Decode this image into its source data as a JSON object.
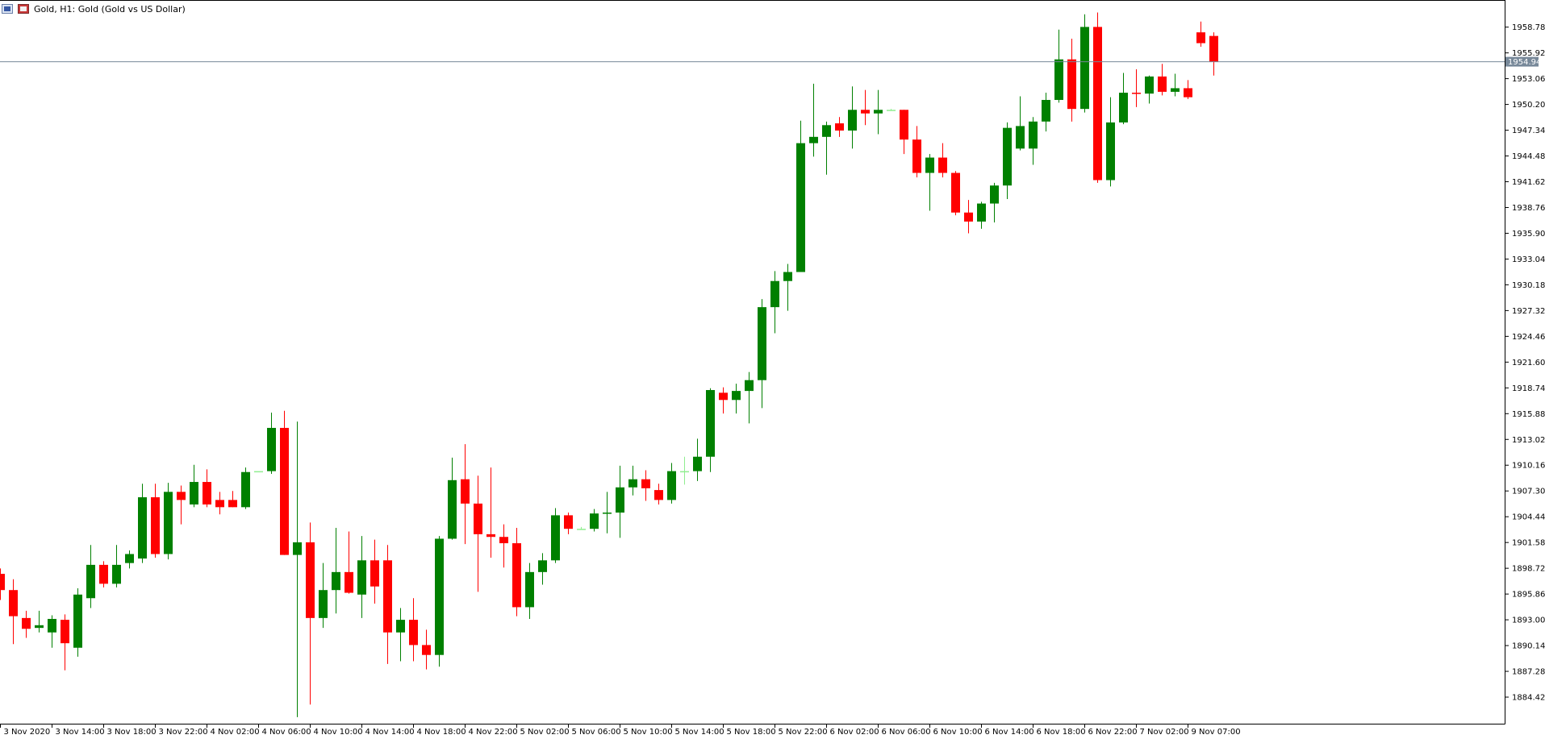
{
  "window": {
    "title": "Gold, H1:  Gold (Gold vs US Dollar)",
    "icons": [
      "chart-window-icon",
      "symbol-window-icon"
    ]
  },
  "colors": {
    "bull": "#008000",
    "bear": "#ff0000",
    "doji": "#90ee90",
    "axis": "#000000",
    "current_price_line": "#778899",
    "current_price_tag": "#778899",
    "background": "#ffffff"
  },
  "chart_data": {
    "type": "candlestick",
    "symbol": "Gold",
    "timeframe": "H1",
    "current_price": 1954.94,
    "current_price_label": "1954.94",
    "ylim": [
      1881.56,
      1961.7
    ],
    "ytick_labels": [
      "1958.78",
      "1955.92",
      "1953.06",
      "1950.20",
      "1947.34",
      "1944.48",
      "1941.62",
      "1938.76",
      "1935.90",
      "1933.04",
      "1930.18",
      "1927.32",
      "1924.46",
      "1921.60",
      "1918.74",
      "1915.88",
      "1913.02",
      "1910.16",
      "1907.30",
      "1904.44",
      "1901.58",
      "1898.72",
      "1895.86",
      "1893.00",
      "1890.14",
      "1887.28",
      "1884.42"
    ],
    "xtick_labels": [
      "3 Nov 2020",
      "3 Nov 14:00",
      "3 Nov 18:00",
      "3 Nov 22:00",
      "4 Nov 02:00",
      "4 Nov 06:00",
      "4 Nov 10:00",
      "4 Nov 14:00",
      "4 Nov 18:00",
      "4 Nov 22:00",
      "5 Nov 02:00",
      "5 Nov 06:00",
      "5 Nov 10:00",
      "5 Nov 14:00",
      "5 Nov 18:00",
      "5 Nov 22:00",
      "6 Nov 02:00",
      "6 Nov 06:00",
      "6 Nov 10:00",
      "6 Nov 14:00",
      "6 Nov 18:00",
      "6 Nov 22:00",
      "7 Nov 02:00",
      "9 Nov 07:00"
    ],
    "candles": [
      {
        "o": 1898.1,
        "h": 1898.7,
        "l": 1895.2,
        "c": 1896.3
      },
      {
        "o": 1896.3,
        "h": 1897.5,
        "l": 1890.3,
        "c": 1893.4
      },
      {
        "o": 1893.2,
        "h": 1894.0,
        "l": 1891.0,
        "c": 1892.0
      },
      {
        "o": 1892.1,
        "h": 1894.0,
        "l": 1891.6,
        "c": 1892.4
      },
      {
        "o": 1891.6,
        "h": 1893.5,
        "l": 1889.9,
        "c": 1893.1
      },
      {
        "o": 1893.0,
        "h": 1893.6,
        "l": 1887.4,
        "c": 1890.4
      },
      {
        "o": 1889.9,
        "h": 1896.5,
        "l": 1888.9,
        "c": 1895.8
      },
      {
        "o": 1895.4,
        "h": 1901.3,
        "l": 1894.3,
        "c": 1899.1
      },
      {
        "o": 1899.1,
        "h": 1899.5,
        "l": 1896.6,
        "c": 1897.0
      },
      {
        "o": 1897.0,
        "h": 1901.3,
        "l": 1896.6,
        "c": 1899.1
      },
      {
        "o": 1899.3,
        "h": 1900.7,
        "l": 1898.7,
        "c": 1900.3
      },
      {
        "o": 1899.8,
        "h": 1908.1,
        "l": 1899.3,
        "c": 1906.6
      },
      {
        "o": 1906.6,
        "h": 1908.1,
        "l": 1899.9,
        "c": 1900.3
      },
      {
        "o": 1900.3,
        "h": 1908.2,
        "l": 1899.7,
        "c": 1907.2
      },
      {
        "o": 1907.2,
        "h": 1907.9,
        "l": 1903.6,
        "c": 1906.3
      },
      {
        "o": 1905.8,
        "h": 1910.2,
        "l": 1905.5,
        "c": 1908.3
      },
      {
        "o": 1908.3,
        "h": 1909.7,
        "l": 1905.5,
        "c": 1905.8
      },
      {
        "o": 1906.3,
        "h": 1907.2,
        "l": 1904.7,
        "c": 1905.5
      },
      {
        "o": 1906.3,
        "h": 1907.3,
        "l": 1905.5,
        "c": 1905.5
      },
      {
        "o": 1905.5,
        "h": 1909.9,
        "l": 1905.3,
        "c": 1909.4
      },
      {
        "o": 1909.5,
        "h": 1909.5,
        "l": 1909.5,
        "c": 1909.5
      },
      {
        "o": 1909.5,
        "h": 1916.0,
        "l": 1909.2,
        "c": 1914.3
      },
      {
        "o": 1914.3,
        "h": 1916.2,
        "l": 1900.2,
        "c": 1900.2
      },
      {
        "o": 1900.2,
        "h": 1915.0,
        "l": 1882.2,
        "c": 1901.6
      },
      {
        "o": 1901.6,
        "h": 1903.8,
        "l": 1883.6,
        "c": 1893.2
      },
      {
        "o": 1893.2,
        "h": 1899.3,
        "l": 1892.1,
        "c": 1896.3
      },
      {
        "o": 1896.3,
        "h": 1903.2,
        "l": 1893.7,
        "c": 1898.3
      },
      {
        "o": 1898.3,
        "h": 1902.8,
        "l": 1895.9,
        "c": 1896.0
      },
      {
        "o": 1895.8,
        "h": 1902.3,
        "l": 1893.2,
        "c": 1899.6
      },
      {
        "o": 1899.6,
        "h": 1901.9,
        "l": 1894.8,
        "c": 1896.7
      },
      {
        "o": 1899.6,
        "h": 1901.3,
        "l": 1888.1,
        "c": 1891.6
      },
      {
        "o": 1891.6,
        "h": 1894.3,
        "l": 1888.4,
        "c": 1893.0
      },
      {
        "o": 1893.0,
        "h": 1895.4,
        "l": 1888.4,
        "c": 1890.2
      },
      {
        "o": 1890.2,
        "h": 1891.9,
        "l": 1887.5,
        "c": 1889.1
      },
      {
        "o": 1889.1,
        "h": 1902.3,
        "l": 1887.8,
        "c": 1902.0
      },
      {
        "o": 1902.0,
        "h": 1911.0,
        "l": 1901.9,
        "c": 1908.5
      },
      {
        "o": 1908.6,
        "h": 1912.5,
        "l": 1901.4,
        "c": 1905.9
      },
      {
        "o": 1905.9,
        "h": 1909.0,
        "l": 1896.1,
        "c": 1902.5
      },
      {
        "o": 1902.5,
        "h": 1909.9,
        "l": 1899.9,
        "c": 1902.2
      },
      {
        "o": 1902.2,
        "h": 1903.6,
        "l": 1898.8,
        "c": 1901.5
      },
      {
        "o": 1901.5,
        "h": 1903.2,
        "l": 1893.4,
        "c": 1894.4
      },
      {
        "o": 1894.4,
        "h": 1899.3,
        "l": 1893.1,
        "c": 1898.3
      },
      {
        "o": 1898.3,
        "h": 1900.4,
        "l": 1896.9,
        "c": 1899.6
      },
      {
        "o": 1899.6,
        "h": 1905.4,
        "l": 1899.3,
        "c": 1904.6
      },
      {
        "o": 1904.6,
        "h": 1904.9,
        "l": 1902.5,
        "c": 1903.1
      },
      {
        "o": 1903.1,
        "h": 1903.3,
        "l": 1903.0,
        "c": 1903.1
      },
      {
        "o": 1903.1,
        "h": 1905.3,
        "l": 1902.8,
        "c": 1904.8
      },
      {
        "o": 1904.8,
        "h": 1907.2,
        "l": 1902.6,
        "c": 1904.9
      },
      {
        "o": 1904.9,
        "h": 1910.1,
        "l": 1902.1,
        "c": 1907.7
      },
      {
        "o": 1907.7,
        "h": 1910.1,
        "l": 1906.8,
        "c": 1908.6
      },
      {
        "o": 1908.6,
        "h": 1909.6,
        "l": 1906.2,
        "c": 1907.6
      },
      {
        "o": 1907.4,
        "h": 1908.1,
        "l": 1905.8,
        "c": 1906.3
      },
      {
        "o": 1906.3,
        "h": 1910.4,
        "l": 1905.9,
        "c": 1909.5
      },
      {
        "o": 1909.5,
        "h": 1911.1,
        "l": 1908.0,
        "c": 1909.5
      },
      {
        "o": 1909.5,
        "h": 1913.1,
        "l": 1908.4,
        "c": 1911.1
      },
      {
        "o": 1911.1,
        "h": 1918.7,
        "l": 1909.4,
        "c": 1918.5
      },
      {
        "o": 1918.2,
        "h": 1918.8,
        "l": 1915.9,
        "c": 1917.4
      },
      {
        "o": 1917.4,
        "h": 1919.2,
        "l": 1915.9,
        "c": 1918.4
      },
      {
        "o": 1918.4,
        "h": 1920.5,
        "l": 1914.8,
        "c": 1919.6
      },
      {
        "o": 1919.6,
        "h": 1928.6,
        "l": 1916.5,
        "c": 1927.7
      },
      {
        "o": 1927.7,
        "h": 1931.7,
        "l": 1924.8,
        "c": 1930.6
      },
      {
        "o": 1930.6,
        "h": 1932.5,
        "l": 1927.3,
        "c": 1931.6
      },
      {
        "o": 1931.6,
        "h": 1948.4,
        "l": 1931.6,
        "c": 1945.9
      },
      {
        "o": 1945.9,
        "h": 1952.5,
        "l": 1944.4,
        "c": 1946.6
      },
      {
        "o": 1946.6,
        "h": 1948.3,
        "l": 1942.4,
        "c": 1947.9
      },
      {
        "o": 1948.1,
        "h": 1948.8,
        "l": 1946.6,
        "c": 1947.3
      },
      {
        "o": 1947.3,
        "h": 1952.2,
        "l": 1945.3,
        "c": 1949.6
      },
      {
        "o": 1949.6,
        "h": 1951.8,
        "l": 1947.9,
        "c": 1949.2
      },
      {
        "o": 1949.2,
        "h": 1951.8,
        "l": 1946.9,
        "c": 1949.6
      },
      {
        "o": 1949.6,
        "h": 1949.7,
        "l": 1949.5,
        "c": 1949.6
      },
      {
        "o": 1949.6,
        "h": 1949.6,
        "l": 1944.7,
        "c": 1946.3
      },
      {
        "o": 1946.3,
        "h": 1947.8,
        "l": 1942.1,
        "c": 1942.6
      },
      {
        "o": 1942.6,
        "h": 1944.7,
        "l": 1938.4,
        "c": 1944.3
      },
      {
        "o": 1944.3,
        "h": 1945.9,
        "l": 1942.1,
        "c": 1942.6
      },
      {
        "o": 1942.6,
        "h": 1942.8,
        "l": 1937.9,
        "c": 1938.2
      },
      {
        "o": 1938.2,
        "h": 1939.6,
        "l": 1935.9,
        "c": 1937.2
      },
      {
        "o": 1937.2,
        "h": 1939.4,
        "l": 1936.4,
        "c": 1939.2
      },
      {
        "o": 1939.2,
        "h": 1941.5,
        "l": 1937.1,
        "c": 1941.2
      },
      {
        "o": 1941.2,
        "h": 1948.2,
        "l": 1939.7,
        "c": 1947.6
      },
      {
        "o": 1945.3,
        "h": 1951.1,
        "l": 1945.1,
        "c": 1947.8
      },
      {
        "o": 1945.3,
        "h": 1948.8,
        "l": 1943.5,
        "c": 1948.3
      },
      {
        "o": 1948.3,
        "h": 1951.5,
        "l": 1947.2,
        "c": 1950.7
      },
      {
        "o": 1950.7,
        "h": 1958.5,
        "l": 1950.4,
        "c": 1955.2
      },
      {
        "o": 1955.2,
        "h": 1957.5,
        "l": 1948.3,
        "c": 1949.7
      },
      {
        "o": 1949.7,
        "h": 1960.2,
        "l": 1949.3,
        "c": 1958.8
      },
      {
        "o": 1958.8,
        "h": 1960.4,
        "l": 1941.5,
        "c": 1941.8
      },
      {
        "o": 1941.8,
        "h": 1951.0,
        "l": 1941.1,
        "c": 1948.2
      },
      {
        "o": 1948.2,
        "h": 1953.7,
        "l": 1948.0,
        "c": 1951.5
      },
      {
        "o": 1951.5,
        "h": 1954.1,
        "l": 1949.9,
        "c": 1951.4
      },
      {
        "o": 1951.4,
        "h": 1953.4,
        "l": 1950.3,
        "c": 1953.3
      },
      {
        "o": 1953.3,
        "h": 1954.7,
        "l": 1951.2,
        "c": 1951.6
      },
      {
        "o": 1951.6,
        "h": 1953.6,
        "l": 1951.1,
        "c": 1952.0
      },
      {
        "o": 1952.0,
        "h": 1952.9,
        "l": 1950.8,
        "c": 1951.0
      },
      {
        "o": 1958.2,
        "h": 1959.4,
        "l": 1956.6,
        "c": 1957.0
      },
      {
        "o": 1957.8,
        "h": 1958.2,
        "l": 1953.4,
        "c": 1954.9
      }
    ]
  }
}
